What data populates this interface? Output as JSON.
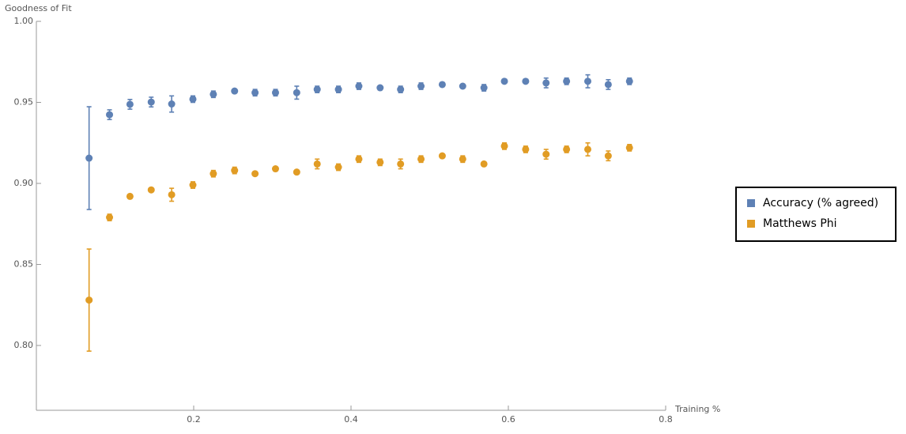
{
  "chart_data": {
    "type": "errorbar-scatter",
    "y_label": "Goodness of Fit",
    "x_label": "Training %",
    "x": [
      0.067,
      0.093,
      0.119,
      0.146,
      0.172,
      0.199,
      0.225,
      0.252,
      0.278,
      0.304,
      0.331,
      0.357,
      0.384,
      0.41,
      0.437,
      0.463,
      0.489,
      0.516,
      0.542,
      0.569,
      0.595,
      0.622,
      0.648,
      0.674,
      0.701,
      0.727,
      0.754
    ],
    "series": [
      {
        "name": "Accuracy (% agreed)",
        "color": "#5e81b5",
        "values": [
          0.9156,
          0.9424,
          0.9488,
          0.9502,
          0.949,
          0.952,
          0.955,
          0.957,
          0.956,
          0.956,
          0.956,
          0.958,
          0.958,
          0.96,
          0.959,
          0.958,
          0.96,
          0.961,
          0.96,
          0.959,
          0.963,
          0.963,
          0.962,
          0.963,
          0.963,
          0.961,
          0.963
        ],
        "errors": [
          0.0317,
          0.003,
          0.003,
          0.003,
          0.005,
          0.002,
          0.002,
          0.001,
          0.002,
          0.002,
          0.004,
          0.002,
          0.002,
          0.002,
          0.001,
          0.002,
          0.002,
          0.001,
          0.001,
          0.002,
          0.001,
          0.001,
          0.003,
          0.002,
          0.004,
          0.003,
          0.002
        ]
      },
      {
        "name": "Matthews Phi",
        "color": "#e19c24",
        "values": [
          0.828,
          0.879,
          0.892,
          0.896,
          0.893,
          0.899,
          0.906,
          0.908,
          0.906,
          0.909,
          0.907,
          0.912,
          0.91,
          0.915,
          0.913,
          0.912,
          0.915,
          0.917,
          0.915,
          0.912,
          0.923,
          0.921,
          0.918,
          0.921,
          0.921,
          0.917,
          0.922
        ],
        "errors": [
          0.0315,
          0.002,
          0.001,
          0.001,
          0.004,
          0.002,
          0.002,
          0.002,
          0.001,
          0.001,
          0.001,
          0.003,
          0.002,
          0.002,
          0.002,
          0.003,
          0.002,
          0.001,
          0.002,
          0.001,
          0.002,
          0.002,
          0.003,
          0.002,
          0.004,
          0.003,
          0.002
        ]
      }
    ],
    "xlim": [
      0,
      0.8
    ],
    "xticks": [
      0.2,
      0.4,
      0.6,
      0.8
    ],
    "ylim": [
      0.76,
      1.0
    ],
    "yticks": [
      {
        "value": 0.8,
        "label": "0.80"
      },
      {
        "value": 0.85,
        "label": "0.85"
      },
      {
        "value": 0.9,
        "label": "0.90"
      },
      {
        "value": 0.95,
        "label": "0.95"
      },
      {
        "value": 1.0,
        "label": "1.00"
      }
    ],
    "legend": "right"
  }
}
